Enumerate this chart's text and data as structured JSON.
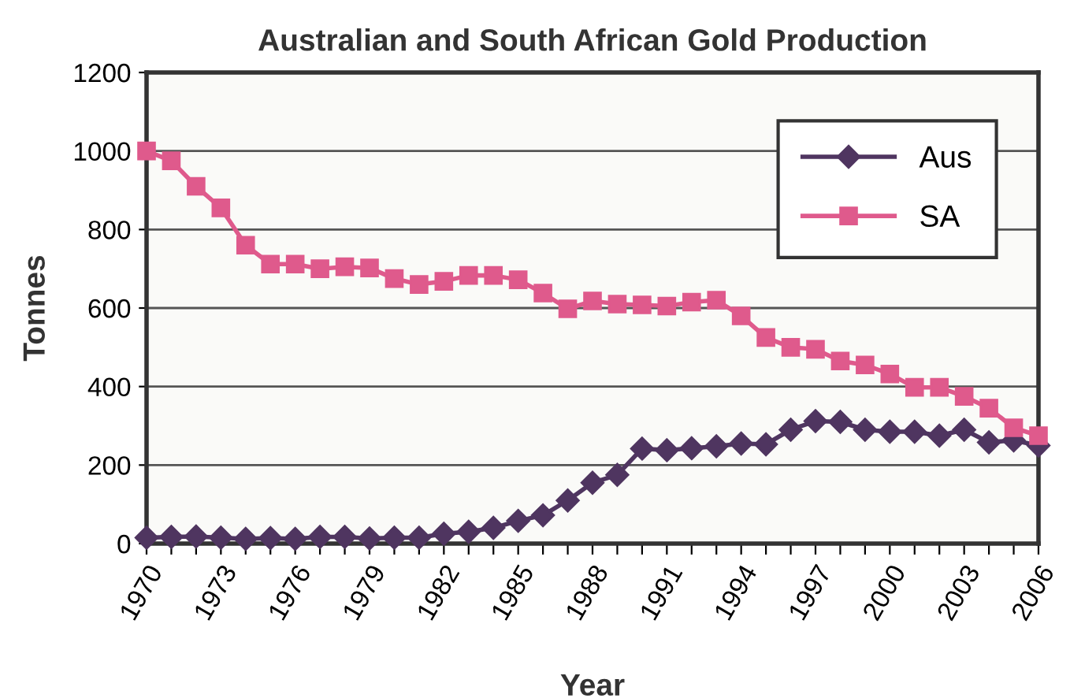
{
  "chart_data": {
    "type": "line",
    "title": "Australian and South African Gold Production",
    "xlabel": "Year",
    "ylabel": "Tonnes",
    "categories": [
      "1970",
      null,
      null,
      "1973",
      null,
      null,
      "1976",
      null,
      null,
      "1979",
      null,
      null,
      "1982",
      null,
      null,
      "1985",
      null,
      null,
      "1988",
      null,
      null,
      "1991",
      null,
      null,
      "1994",
      null,
      null,
      "1997",
      null,
      null,
      "2000",
      null,
      null,
      "2003",
      null,
      null,
      "2006"
    ],
    "series": [
      {
        "name": "Aus",
        "color": "#4f3560",
        "marker": "diamond",
        "values": [
          15,
          17,
          18,
          15,
          12,
          14,
          12,
          17,
          17,
          13,
          15,
          15,
          25,
          30,
          40,
          58,
          72,
          110,
          155,
          175,
          242,
          238,
          243,
          248,
          255,
          253,
          290,
          312,
          310,
          290,
          285,
          285,
          275,
          290,
          258,
          263,
          250
        ]
      },
      {
        "name": "SA",
        "color": "#df5a8c",
        "marker": "square",
        "values": [
          1000,
          975,
          910,
          855,
          760,
          712,
          712,
          700,
          705,
          702,
          675,
          660,
          668,
          683,
          683,
          672,
          638,
          598,
          618,
          610,
          608,
          605,
          615,
          620,
          580,
          525,
          500,
          495,
          465,
          455,
          432,
          398,
          398,
          375,
          345,
          295,
          275
        ]
      }
    ],
    "ylim": [
      0,
      1200
    ],
    "yticks": [
      0,
      200,
      400,
      600,
      800,
      1000,
      1200
    ],
    "grid": "y",
    "legend": "top right"
  }
}
